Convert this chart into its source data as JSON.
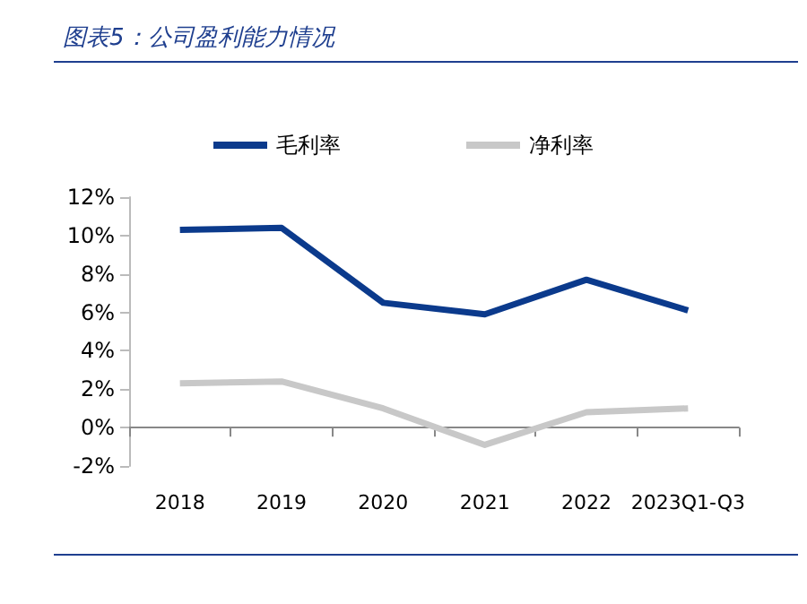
{
  "chart_data": {
    "type": "line",
    "title": "图表5：公司盈利能力情况",
    "categories": [
      "2018",
      "2019",
      "2020",
      "2021",
      "2022",
      "2023Q1-Q3"
    ],
    "series": [
      {
        "name": "毛利率",
        "color": "#0b3a8c",
        "values": [
          10.3,
          10.4,
          6.5,
          5.9,
          7.7,
          6.1
        ]
      },
      {
        "name": "净利率",
        "color": "#c8c8c8",
        "values": [
          2.3,
          2.4,
          1.0,
          -0.9,
          0.8,
          1.0
        ]
      }
    ],
    "ylim": [
      -2,
      12
    ],
    "yticks": [
      {
        "value": -2,
        "label": "-2%"
      },
      {
        "value": 0,
        "label": "0%"
      },
      {
        "value": 2,
        "label": "2%"
      },
      {
        "value": 4,
        "label": "4%"
      },
      {
        "value": 6,
        "label": "6%"
      },
      {
        "value": 8,
        "label": "8%"
      },
      {
        "value": 10,
        "label": "10%"
      },
      {
        "value": 12,
        "label": "12%"
      }
    ],
    "legend": "top",
    "marker": "none",
    "line_style": "solid"
  }
}
